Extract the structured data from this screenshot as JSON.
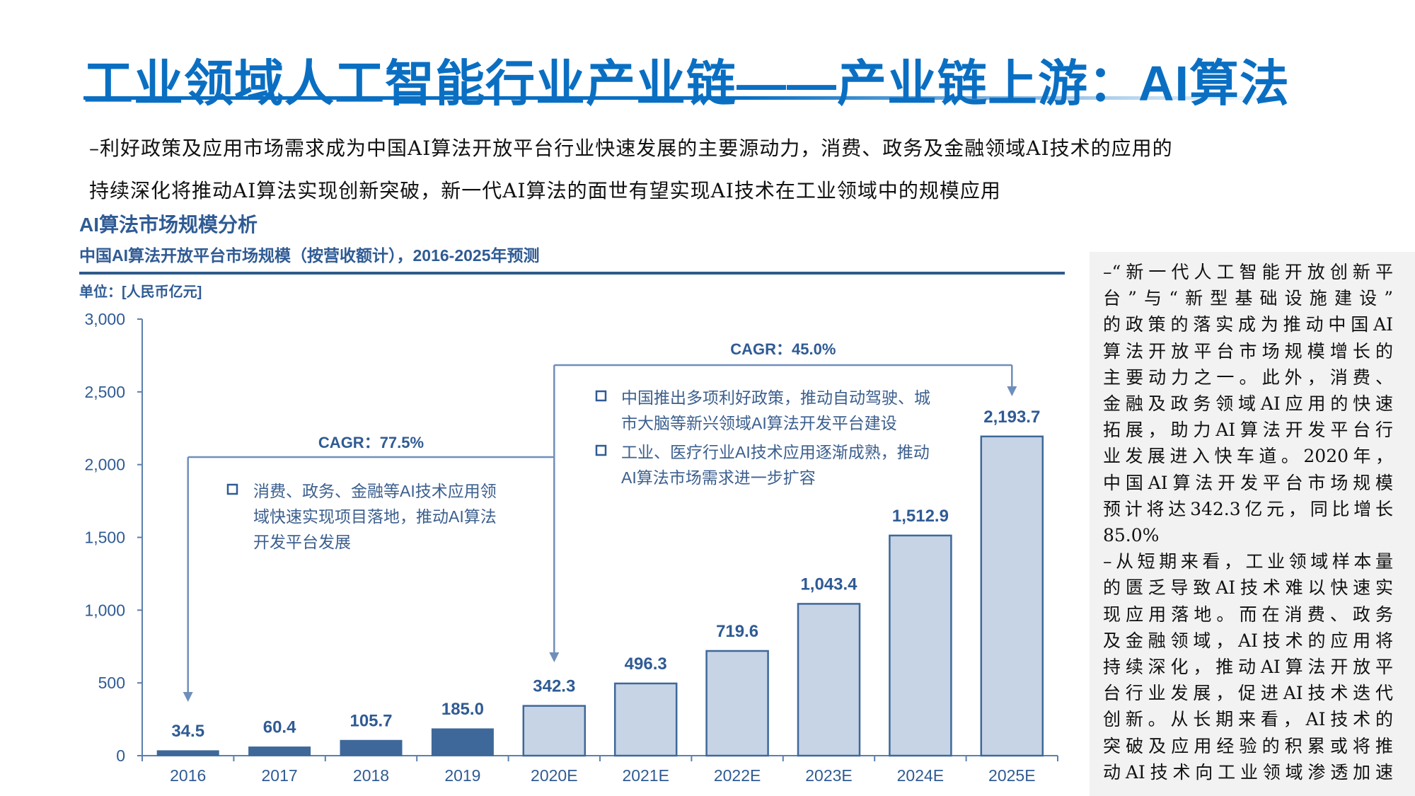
{
  "header": {
    "title": "工业领域人工智能行业产业链——产业链上游：AI算法",
    "intro_lines": [
      "–利好政策及应用市场需求成为中国AI算法开放平台行业快速发展的主要源动力，消费、政务及金融领域AI技术的应用的",
      "持续深化将推动AI算法实现创新突破，新一代AI算法的面世有望实现AI技术在工业领域中的规模应用"
    ]
  },
  "section_title": "AI算法市场规模分析",
  "chart_data": {
    "type": "bar",
    "title": "中国AI算法开放平台市场规模（按营收额计），2016-2025年预测",
    "unit": "单位：[人民币亿元]",
    "categories": [
      "2016",
      "2017",
      "2018",
      "2019",
      "2020E",
      "2021E",
      "2022E",
      "2023E",
      "2024E",
      "2025E"
    ],
    "values": [
      34.5,
      60.4,
      105.7,
      185.0,
      342.3,
      496.3,
      719.6,
      1043.4,
      1512.9,
      2193.7
    ],
    "value_labels": [
      "34.5",
      "60.4",
      "105.7",
      "185.0",
      "342.3",
      "496.3",
      "719.6",
      "1,043.4",
      "1,512.9",
      "2,193.7"
    ],
    "forecast": [
      false,
      false,
      false,
      false,
      true,
      true,
      true,
      true,
      true,
      true
    ],
    "ylim": [
      0,
      3000
    ],
    "yticks": [
      0,
      500,
      1000,
      1500,
      2000,
      2500,
      3000
    ],
    "ytick_labels": [
      "0",
      "500",
      "1,000",
      "1,500",
      "2,000",
      "2,500",
      "3,000"
    ],
    "grid": false,
    "colors": {
      "actual": "#3e6899",
      "forecast": "#c7d4e5",
      "forecast_border": "#3e6899",
      "text": "#2f5b94",
      "axis": "#5b7fae"
    },
    "annotations": [
      {
        "label": "CAGR：77.5%",
        "from": "2016",
        "to": "2020E",
        "notes": [
          [
            "消费、政务、金融等AI技术应用领",
            "域快速实现项目落地，推动AI算法",
            "开发平台发展"
          ]
        ]
      },
      {
        "label": "CAGR：45.0%",
        "from": "2020E",
        "to": "2025E",
        "notes": [
          [
            "中国推出多项利好政策，推动自动驾驶、城",
            "市大脑等新兴领域AI算法开发平台建设"
          ],
          [
            "工业、医疗行业AI技术应用逐渐成熟，推动",
            "AI算法市场需求进一步扩容"
          ]
        ]
      }
    ]
  },
  "sidebar": {
    "lines": [
      "–“新一代人工智能开放创新平",
      "台”与“新型基础设施建设”",
      "的政策的落实成为推动中国AI",
      "算法开放平台市场规模增长的",
      "主要动力之一。此外，消费、",
      "金融及政务领域AI应用的快速",
      "拓展，助力AI算法开发平台行",
      "业发展进入快车道。2020年，",
      "中国AI算法开发平台市场规模",
      "预计将达342.3亿元，同比增长",
      "85.0%",
      "–从短期来看，工业领域样本量",
      "的匮乏导致AI技术难以快速实",
      "现应用落地。而在消费、政务",
      "及金融领域，AI技术的应用将",
      "持续深化，推动AI算法开放平",
      "台行业发展，促进AI技术迭代",
      "创新。从长期来看，AI技术的",
      "突破及应用经验的积累或将推",
      "动AI技术向工业领域渗透加速"
    ]
  }
}
